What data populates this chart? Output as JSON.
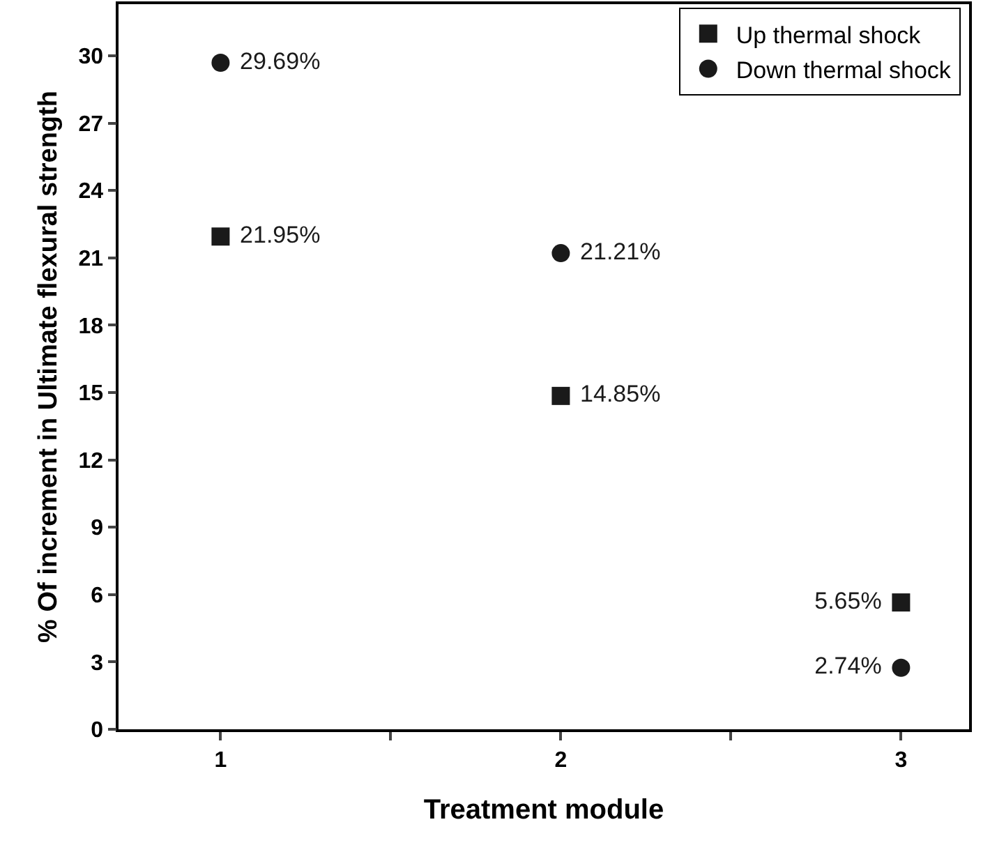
{
  "chart_data": {
    "type": "scatter",
    "xlabel": "Treatment module",
    "ylabel": "% Of increment in Ultimate flexural strength",
    "x": [
      1,
      2,
      3
    ],
    "xlim": [
      0.7,
      3.2
    ],
    "xticks": [
      1,
      {
        "value": 1.5,
        "label": null
      },
      2,
      {
        "value": 2.5,
        "label": null
      },
      3
    ],
    "ylim": [
      0,
      32.3
    ],
    "yticks": [
      0,
      3,
      6,
      9,
      12,
      15,
      18,
      21,
      24,
      27,
      30
    ],
    "grid": false,
    "legend": "top right",
    "series": [
      {
        "name": "Up thermal shock",
        "color": "#1a1a1a",
        "marker": "square",
        "values": [
          21.95,
          14.85,
          5.65
        ],
        "value_labels": [
          "21.95%",
          "14.85%",
          "5.65%"
        ]
      },
      {
        "name": "Down thermal shock",
        "color": "#1a1a1a",
        "marker": "circle",
        "values": [
          29.69,
          21.21,
          2.74
        ],
        "value_labels": [
          "29.69%",
          "21.21%",
          "2.74%"
        ]
      }
    ]
  }
}
